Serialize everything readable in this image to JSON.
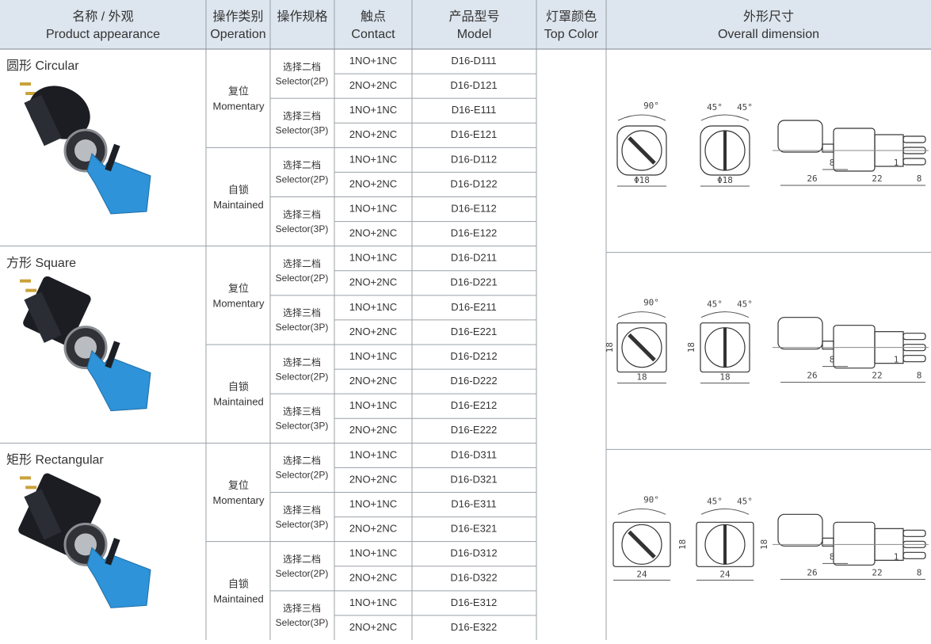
{
  "header": {
    "columns": [
      {
        "zh": "名称 / 外观",
        "en": "Product appearance"
      },
      {
        "zh": "操作类别",
        "en": "Operation"
      },
      {
        "zh": "操作规格"
      },
      {
        "zh": "触点",
        "en": "Contact"
      },
      {
        "zh": "产品型号",
        "en": "Model"
      },
      {
        "zh": "灯罩颜色",
        "en": "Top Color"
      },
      {
        "zh": "外形尺寸",
        "en": "Overall dimension"
      }
    ]
  },
  "groups": [
    {
      "name": "圆形 Circular",
      "operations": [
        {
          "zh": "复位",
          "en": "Momentary",
          "specs": [
            {
              "zh": "选择二档",
              "en": "Selector(2P)",
              "rows": [
                {
                  "contact": "1NO+1NC",
                  "model": "D16-D111"
                },
                {
                  "contact": "2NO+2NC",
                  "model": "D16-D121"
                }
              ]
            },
            {
              "zh": "选择三档",
              "en": "Selector(3P)",
              "rows": [
                {
                  "contact": "1NO+1NC",
                  "model": "D16-E111"
                },
                {
                  "contact": "2NO+2NC",
                  "model": "D16-E121"
                }
              ]
            }
          ]
        },
        {
          "zh": "自锁",
          "en": "Maintained",
          "specs": [
            {
              "zh": "选择二档",
              "en": "Selector(2P)",
              "rows": [
                {
                  "contact": "1NO+1NC",
                  "model": "D16-D112"
                },
                {
                  "contact": "2NO+2NC",
                  "model": "D16-D122"
                }
              ]
            },
            {
              "zh": "选择三档",
              "en": "Selector(3P)",
              "rows": [
                {
                  "contact": "1NO+1NC",
                  "model": "D16-E112"
                },
                {
                  "contact": "2NO+2NC",
                  "model": "D16-E122"
                }
              ]
            }
          ]
        }
      ],
      "dims": {
        "angle_front": "90°",
        "angle_left": "45°",
        "angle_right": "45°",
        "front_w": "Φ18",
        "side_w": "Φ18",
        "key_d": "8",
        "gap": "1",
        "len_a": "26",
        "len_b": "22",
        "len_c": "8"
      }
    },
    {
      "name": "方形 Square",
      "operations": [
        {
          "zh": "复位",
          "en": "Momentary",
          "specs": [
            {
              "zh": "选择二档",
              "en": "Selector(2P)",
              "rows": [
                {
                  "contact": "1NO+1NC",
                  "model": "D16-D211"
                },
                {
                  "contact": "2NO+2NC",
                  "model": "D16-D221"
                }
              ]
            },
            {
              "zh": "选择三档",
              "en": "Selector(3P)",
              "rows": [
                {
                  "contact": "1NO+1NC",
                  "model": "D16-E211"
                },
                {
                  "contact": "2NO+2NC",
                  "model": "D16-E221"
                }
              ]
            }
          ]
        },
        {
          "zh": "自锁",
          "en": "Maintained",
          "specs": [
            {
              "zh": "选择二档",
              "en": "Selector(2P)",
              "rows": [
                {
                  "contact": "1NO+1NC",
                  "model": "D16-D212"
                },
                {
                  "contact": "2NO+2NC",
                  "model": "D16-D222"
                }
              ]
            },
            {
              "zh": "选择三档",
              "en": "Selector(3P)",
              "rows": [
                {
                  "contact": "1NO+1NC",
                  "model": "D16-E212"
                },
                {
                  "contact": "2NO+2NC",
                  "model": "D16-E222"
                }
              ]
            }
          ]
        }
      ],
      "dims": {
        "angle_front": "90°",
        "angle_left": "45°",
        "angle_right": "45°",
        "front_w": "18",
        "side_w": "18",
        "front_h": "18",
        "side_h": "18",
        "key_d": "8",
        "gap": "1",
        "len_a": "26",
        "len_b": "22",
        "len_c": "8"
      }
    },
    {
      "name": "矩形 Rectangular",
      "operations": [
        {
          "zh": "复位",
          "en": "Momentary",
          "specs": [
            {
              "zh": "选择二档",
              "en": "Selector(2P)",
              "rows": [
                {
                  "contact": "1NO+1NC",
                  "model": "D16-D311"
                },
                {
                  "contact": "2NO+2NC",
                  "model": "D16-D321"
                }
              ]
            },
            {
              "zh": "选择三档",
              "en": "Selector(3P)",
              "rows": [
                {
                  "contact": "1NO+1NC",
                  "model": "D16-E311"
                },
                {
                  "contact": "2NO+2NC",
                  "model": "D16-E321"
                }
              ]
            }
          ]
        },
        {
          "zh": "自锁",
          "en": "Maintained",
          "specs": [
            {
              "zh": "选择二档",
              "en": "Selector(2P)",
              "rows": [
                {
                  "contact": "1NO+1NC",
                  "model": "D16-D312"
                },
                {
                  "contact": "2NO+2NC",
                  "model": "D16-D322"
                }
              ]
            },
            {
              "zh": "选择三档",
              "en": "Selector(3P)",
              "rows": [
                {
                  "contact": "1NO+1NC",
                  "model": "D16-E312"
                },
                {
                  "contact": "2NO+2NC",
                  "model": "D16-E322"
                }
              ]
            }
          ]
        }
      ],
      "dims": {
        "angle_front": "90°",
        "angle_left": "45°",
        "angle_right": "45°",
        "front_w": "24",
        "side_w": "24",
        "front_h": "18",
        "side_h": "18",
        "key_d": "8",
        "gap": "1",
        "len_a": "26",
        "len_b": "22",
        "len_c": "8"
      }
    }
  ]
}
